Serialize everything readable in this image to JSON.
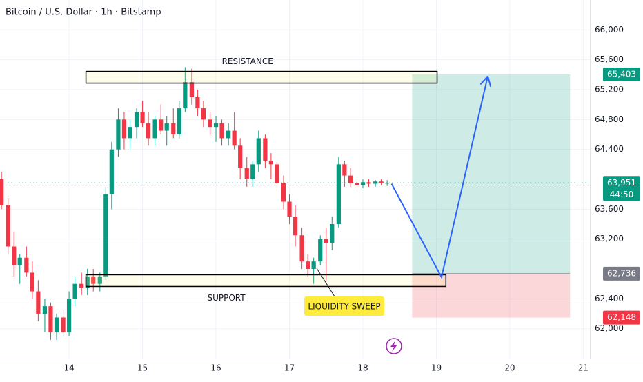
{
  "chart_data": {
    "type": "candlestick",
    "title": "Bitcoin / U.S. Dollar · 1h · Bitstamp",
    "up_color": "#089981",
    "down_color": "#f23645",
    "xlim": [
      13.06,
      21.09
    ],
    "xticks": [
      14,
      15,
      16,
      17,
      18,
      19,
      20,
      21
    ],
    "ylim": [
      61600,
      66400
    ],
    "yticks": [
      {
        "value": 62000,
        "label": "62,000"
      },
      {
        "value": 62400,
        "label": "62,400"
      },
      {
        "value": 63200,
        "label": "63,200"
      },
      {
        "value": 63600,
        "label": "63,600"
      },
      {
        "value": 64400,
        "label": "64,400"
      },
      {
        "value": 64800,
        "label": "64,800"
      },
      {
        "value": 65200,
        "label": "65,200"
      },
      {
        "value": 65600,
        "label": "65,600"
      },
      {
        "value": 66000,
        "label": "66,000"
      }
    ],
    "grid": true,
    "x": [
      13.08,
      13.17,
      13.25,
      13.33,
      13.42,
      13.5,
      13.58,
      13.67,
      13.75,
      13.83,
      13.92,
      14,
      14.08,
      14.17,
      14.25,
      14.33,
      14.42,
      14.5,
      14.58,
      14.67,
      14.75,
      14.83,
      14.92,
      15,
      15.08,
      15.17,
      15.25,
      15.33,
      15.42,
      15.5,
      15.58,
      15.67,
      15.75,
      15.83,
      15.92,
      16,
      16.08,
      16.17,
      16.25,
      16.33,
      16.42,
      16.5,
      16.58,
      16.67,
      16.75,
      16.83,
      16.92,
      17,
      17.08,
      17.17,
      17.25,
      17.33,
      17.42,
      17.5,
      17.58,
      17.67,
      17.75,
      17.83,
      17.92,
      18,
      18.08,
      18.17,
      18.25,
      18.33
    ],
    "open": [
      64000,
      63650,
      63100,
      62850,
      62950,
      62750,
      62500,
      62200,
      62300,
      61950,
      62150,
      61950,
      62400,
      62600,
      62550,
      62700,
      62600,
      62700,
      63800,
      64400,
      64800,
      64550,
      64700,
      64900,
      64750,
      64550,
      64800,
      64650,
      64750,
      64600,
      64950,
      65300,
      65100,
      64950,
      64800,
      64700,
      64750,
      64550,
      64650,
      64450,
      64150,
      64000,
      64200,
      64550,
      64250,
      64200,
      63950,
      63700,
      63500,
      63250,
      62900,
      62800,
      62900,
      63200,
      63150,
      63400,
      64200,
      64050,
      63950,
      63920,
      63960,
      63940,
      63970,
      63950
    ],
    "high": [
      64100,
      63750,
      63300,
      63000,
      63100,
      62900,
      62650,
      62400,
      62350,
      62200,
      62250,
      62500,
      62700,
      62750,
      62800,
      62800,
      62750,
      63900,
      64500,
      64950,
      64900,
      64800,
      64950,
      65050,
      64900,
      64850,
      65000,
      64850,
      64950,
      65050,
      65500,
      65480,
      65200,
      65050,
      64900,
      64850,
      64800,
      64750,
      64900,
      64550,
      64300,
      64250,
      64650,
      64600,
      64350,
      64250,
      64050,
      63800,
      63650,
      63350,
      63000,
      62950,
      63250,
      63350,
      63500,
      64300,
      64250,
      64150,
      64000,
      64000,
      64000,
      63990,
      64000,
      63990
    ],
    "low": [
      63600,
      63000,
      62700,
      62600,
      62700,
      62400,
      62100,
      61950,
      61850,
      61850,
      61900,
      61900,
      62300,
      62450,
      62450,
      62500,
      62500,
      62650,
      63600,
      64300,
      64400,
      64400,
      64550,
      64700,
      64450,
      64450,
      64600,
      64450,
      64550,
      64550,
      64900,
      65000,
      64850,
      64700,
      64600,
      64500,
      64450,
      64450,
      64400,
      64000,
      63900,
      63900,
      64100,
      64150,
      64000,
      63850,
      63600,
      63400,
      63100,
      62800,
      62700,
      62600,
      62850,
      62650,
      63050,
      63350,
      63900,
      63900,
      63850,
      63880,
      63900,
      63900,
      63920,
      63910
    ],
    "close": [
      63650,
      63100,
      62850,
      62950,
      62750,
      62500,
      62200,
      62300,
      61950,
      62150,
      61950,
      62400,
      62600,
      62550,
      62700,
      62600,
      62700,
      63800,
      64400,
      64800,
      64550,
      64700,
      64900,
      64750,
      64550,
      64800,
      64650,
      64750,
      64600,
      64950,
      65300,
      65100,
      64950,
      64800,
      64700,
      64750,
      64550,
      64650,
      64450,
      64150,
      64000,
      64200,
      64550,
      64250,
      64200,
      63950,
      63700,
      63500,
      63250,
      62900,
      62800,
      62900,
      63200,
      63150,
      63400,
      64200,
      64050,
      63950,
      63920,
      63960,
      63940,
      63970,
      63950,
      63951
    ],
    "zones": [
      {
        "label": "RESISTANCE",
        "x": [
          14.23,
          19.01
        ],
        "y": [
          65287,
          65444
        ]
      },
      {
        "label": "SUPPORT",
        "x": [
          14.23,
          19.13
        ],
        "y": [
          62565,
          62722
        ]
      }
    ],
    "position": {
      "x": [
        18.67,
        20.82
      ],
      "target": {
        "value": 65403,
        "label": "65,403",
        "color": "#089981"
      },
      "entry": {
        "value": 62736,
        "label": "62,736",
        "color": "#787b86"
      },
      "stop": {
        "value": 62148,
        "label": "62,148",
        "color": "#f23645"
      }
    },
    "current": {
      "value": 63951,
      "label": "63,951",
      "countdown": "44:50",
      "color": "#089981"
    },
    "arrow": {
      "x": [
        18.39,
        19.07,
        19.7
      ],
      "y": [
        63940,
        62690,
        65380
      ],
      "color": "#2962ff"
    },
    "callout": {
      "text": "LIQUIDITY SWEEP"
    }
  }
}
